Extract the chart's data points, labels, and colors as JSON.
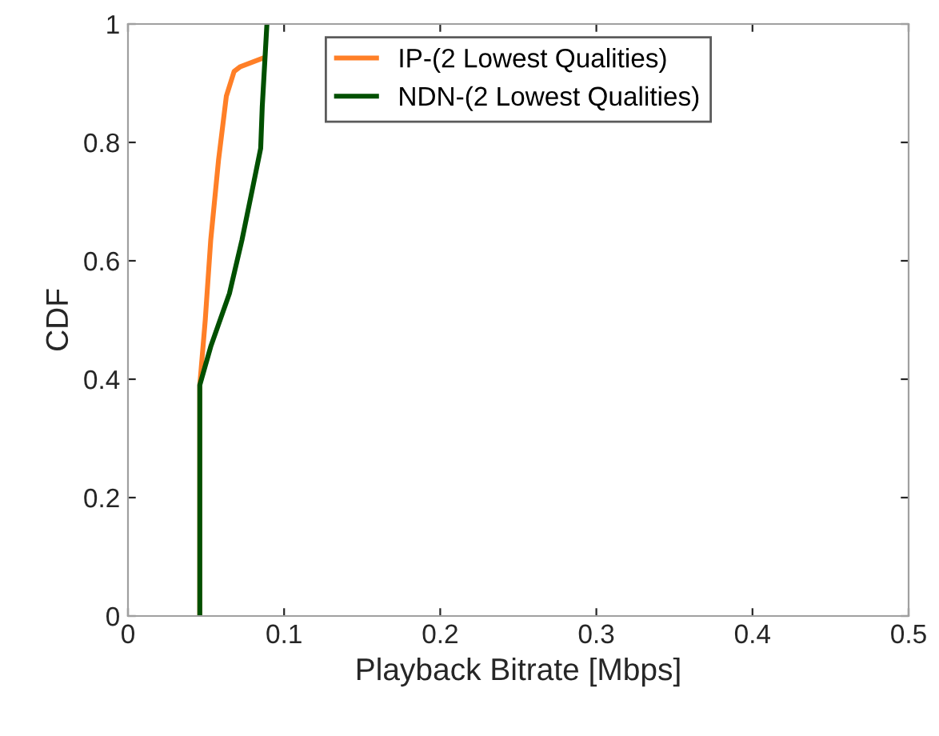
{
  "chart_data": {
    "type": "line",
    "xlabel": "Playback Bitrate [Mbps]",
    "ylabel": "CDF",
    "xlim": [
      0,
      0.5
    ],
    "xticks": [
      0,
      0.1,
      0.2,
      0.3,
      0.4,
      0.5
    ],
    "ylim": [
      0,
      1
    ],
    "yticks": [
      0,
      0.2,
      0.4,
      0.6,
      0.8,
      1
    ],
    "grid": false,
    "legend": "top",
    "marker": "none",
    "line_style": "solid",
    "series": [
      {
        "name": "IP-(2 Lowest Qualities)",
        "color": "#ff7f27",
        "x": [
          0.046,
          0.046,
          0.0495,
          0.053,
          0.058,
          0.063,
          0.068,
          0.072,
          0.087
        ],
        "values": [
          0,
          0.39,
          0.5,
          0.635,
          0.77,
          0.878,
          0.92,
          0.928,
          0.943
        ]
      },
      {
        "name": "NDN-(2 Lowest Qualities)",
        "color": "#005000",
        "x": [
          0.046,
          0.046,
          0.053,
          0.065,
          0.073,
          0.08,
          0.085,
          0.086,
          0.089
        ],
        "values": [
          0,
          0.39,
          0.455,
          0.545,
          0.635,
          0.725,
          0.79,
          0.86,
          1.0
        ]
      }
    ]
  }
}
